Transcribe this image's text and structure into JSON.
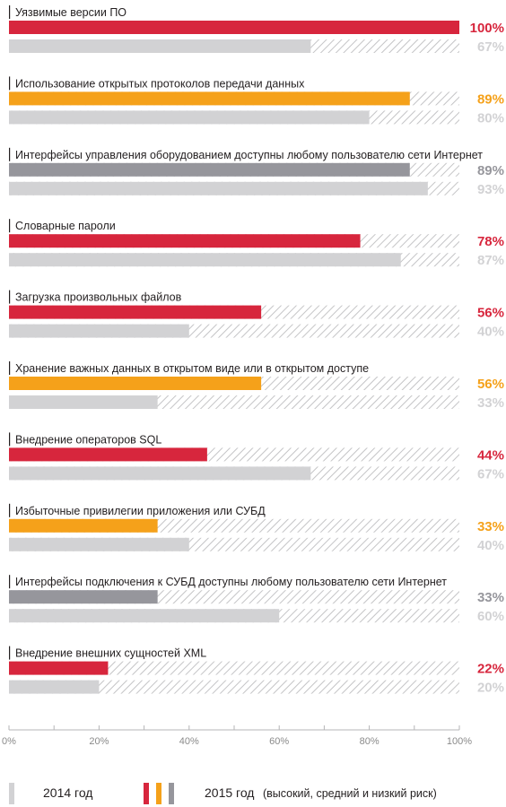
{
  "chart_data": {
    "type": "bar",
    "orientation": "horizontal",
    "xlim": [
      0,
      100
    ],
    "x_ticks": [
      "0%",
      "20%",
      "40%",
      "60%",
      "80%",
      "100%"
    ],
    "colors": {
      "high": "#d7263d",
      "medium": "#f5a11a",
      "low": "#96969c",
      "y2014": "#d2d2d4",
      "remainder_hatch": "#c8c8ca"
    },
    "series": [
      {
        "name": "2014 год"
      },
      {
        "name": "2015 год"
      }
    ],
    "categories": [
      {
        "label": "Уязвимые версии ПО",
        "risk": "high",
        "v2015": 100,
        "v2014": 67,
        "v2015_label": "100%",
        "v2014_label": "67%"
      },
      {
        "label": "Использование открытых протоколов передачи данных",
        "risk": "medium",
        "v2015": 89,
        "v2014": 80,
        "v2015_label": "89%",
        "v2014_label": "80%"
      },
      {
        "label": "Интерфейсы управления оборудованием доступны любому пользователю сети Интернет",
        "risk": "low",
        "v2015": 89,
        "v2014": 93,
        "v2015_label": "89%",
        "v2014_label": "93%"
      },
      {
        "label": "Словарные пароли",
        "risk": "high",
        "v2015": 78,
        "v2014": 87,
        "v2015_label": "78%",
        "v2014_label": "87%"
      },
      {
        "label": "Загрузка произвольных файлов",
        "risk": "high",
        "v2015": 56,
        "v2014": 40,
        "v2015_label": "56%",
        "v2014_label": "40%"
      },
      {
        "label": "Хранение важных данных в открытом виде или в открытом доступе",
        "risk": "medium",
        "v2015": 56,
        "v2014": 33,
        "v2015_label": "56%",
        "v2014_label": "33%"
      },
      {
        "label": "Внедрение операторов SQL",
        "risk": "high",
        "v2015": 44,
        "v2014": 67,
        "v2015_label": "44%",
        "v2014_label": "67%"
      },
      {
        "label": "Избыточные привилегии приложения или СУБД",
        "risk": "medium",
        "v2015": 33,
        "v2014": 40,
        "v2015_label": "33%",
        "v2014_label": "40%"
      },
      {
        "label": "Интерфейсы подключения к СУБД доступны любому пользователю сети Интернет",
        "risk": "low",
        "v2015": 33,
        "v2014": 60,
        "v2015_label": "33%",
        "v2014_label": "60%"
      },
      {
        "label": "Внедрение внешних сущностей XML",
        "risk": "high",
        "v2015": 22,
        "v2014": 20,
        "v2015_label": "22%",
        "v2014_label": "20%"
      }
    ],
    "legend": {
      "y2014_text": "2014 год",
      "y2015_text": "2015 год",
      "y2015_note": "(высокий, средний и низкий риск)"
    }
  }
}
